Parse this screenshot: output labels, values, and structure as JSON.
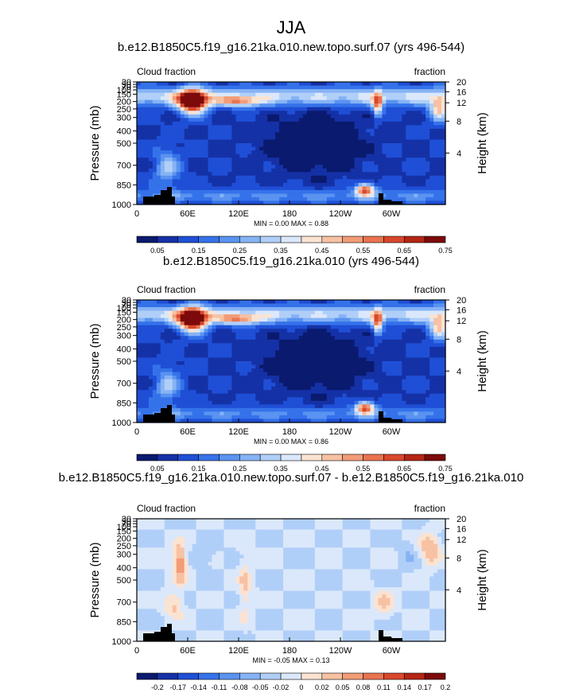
{
  "figure_title": "JJA",
  "colors": {
    "abs_palette": [
      "#0a1a6e",
      "#1531a6",
      "#1f4fd6",
      "#3572ea",
      "#5a93f0",
      "#86b3f5",
      "#b0cff8",
      "#dbe8fb",
      "#fbe3d2",
      "#f7c1a3",
      "#f29c78",
      "#ea734f",
      "#d9472b",
      "#b52514",
      "#7c0a0a"
    ],
    "diff_palette": [
      "#0a1a6e",
      "#1531a6",
      "#1f4fd6",
      "#3572ea",
      "#5a93f0",
      "#86b3f5",
      "#b0cff8",
      "#dbe8fb",
      "#fbe3d2",
      "#f7c1a3",
      "#f29c78",
      "#ea734f",
      "#d9472b",
      "#b52514",
      "#7c0a0a"
    ],
    "topography": "#000000"
  },
  "chart_data": [
    {
      "type": "heatmap",
      "title": "b.e12.B1850C5.f19_g16.21ka.010.new.topo.surf.07 (yrs 496-544)",
      "left_label": "Cloud fraction",
      "right_label": "fraction",
      "ylabel": "Pressure (mb)",
      "y2label": "Height (km)",
      "x_ticks": [
        "0",
        "60E",
        "120E",
        "180",
        "120W",
        "60W"
      ],
      "y_ticks": [
        "1000",
        "850",
        "700",
        "500",
        "400",
        "300",
        "250",
        "200",
        "150",
        "100",
        "70",
        "50",
        "30"
      ],
      "y2_ticks": [
        "4",
        "8",
        "12",
        "16",
        "20"
      ],
      "min_max_text": "MIN =   0.00  MAX =   0.88",
      "levels": [
        "0.05",
        "0.1",
        "0.15",
        "0.2",
        "0.25",
        "0.3",
        "0.35",
        "0.4",
        "0.45",
        "0.5",
        "0.55",
        "0.6",
        "0.65",
        "0.7",
        "0.75"
      ],
      "colorbar_labels": [
        "0.05",
        "0.15",
        "0.25",
        "0.35",
        "0.45",
        "0.55",
        "0.65",
        "0.75"
      ],
      "range": [
        0.0,
        0.88
      ]
    },
    {
      "type": "heatmap",
      "title": "b.e12.B1850C5.f19_g16.21ka.010 (yrs 496-544)",
      "left_label": "Cloud fraction",
      "right_label": "fraction",
      "ylabel": "Pressure (mb)",
      "y2label": "Height (km)",
      "x_ticks": [
        "0",
        "60E",
        "120E",
        "180",
        "120W",
        "60W"
      ],
      "y_ticks": [
        "1000",
        "850",
        "700",
        "500",
        "400",
        "300",
        "250",
        "200",
        "150",
        "100",
        "70",
        "50",
        "30"
      ],
      "y2_ticks": [
        "4",
        "8",
        "12",
        "16",
        "20"
      ],
      "min_max_text": "MIN =   0.00  MAX =   0.86",
      "levels": [
        "0.05",
        "0.1",
        "0.15",
        "0.2",
        "0.25",
        "0.3",
        "0.35",
        "0.4",
        "0.45",
        "0.5",
        "0.55",
        "0.6",
        "0.65",
        "0.7",
        "0.75"
      ],
      "colorbar_labels": [
        "0.05",
        "0.15",
        "0.25",
        "0.35",
        "0.45",
        "0.55",
        "0.65",
        "0.75"
      ],
      "range": [
        0.0,
        0.86
      ]
    },
    {
      "type": "heatmap",
      "title": "b.e12.B1850C5.f19_g16.21ka.010.new.topo.surf.07 - b.e12.B1850C5.f19_g16.21ka.010",
      "left_label": "Cloud fraction",
      "right_label": "fraction",
      "ylabel": "Pressure (mb)",
      "y2label": "Height (km)",
      "x_ticks": [
        "0",
        "60E",
        "120E",
        "180",
        "120W",
        "60W"
      ],
      "y_ticks": [
        "1000",
        "850",
        "700",
        "500",
        "400",
        "300",
        "250",
        "200",
        "150",
        "100",
        "70",
        "50",
        "30"
      ],
      "y2_ticks": [
        "4",
        "8",
        "12",
        "16",
        "20"
      ],
      "min_max_text": "MIN =  -0.05  MAX =   0.13",
      "levels": [
        "-0.2",
        "-0.17",
        "-0.14",
        "-0.11",
        "-0.08",
        "-0.05",
        "-0.02",
        "0",
        "0.02",
        "0.05",
        "0.08",
        "0.11",
        "0.14",
        "0.17",
        "0.2"
      ],
      "colorbar_labels": [
        "-0.2",
        "-0.17",
        "-0.14",
        "-0.11",
        "-0.08",
        "-0.05",
        "-0.02",
        "0",
        "0.02",
        "0.05",
        "0.08",
        "0.11",
        "0.14",
        "0.17",
        "0.2"
      ],
      "range": [
        -0.05,
        0.13
      ]
    }
  ]
}
